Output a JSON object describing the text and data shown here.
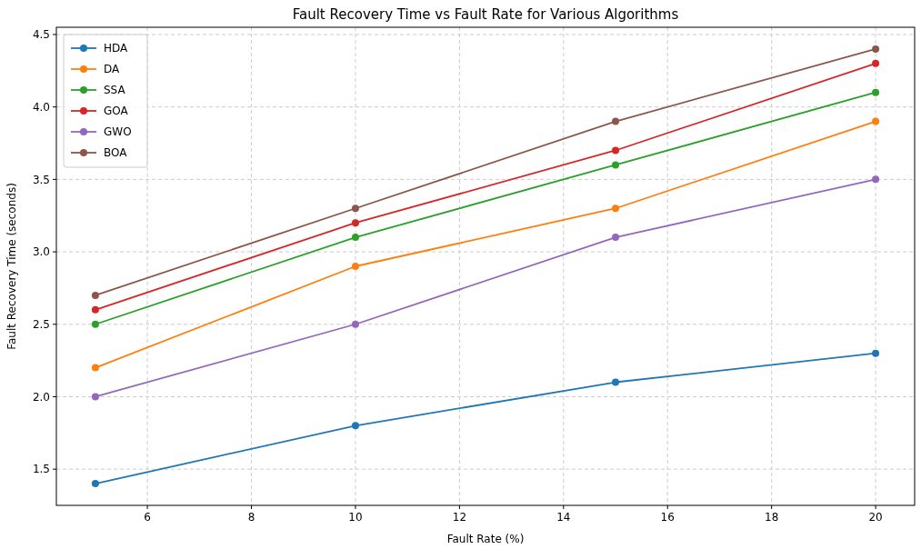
{
  "chart_data": {
    "type": "line",
    "title": "Fault Recovery Time vs Fault Rate for Various Algorithms",
    "xlabel": "Fault Rate (%)",
    "ylabel": "Fault Recovery Time (seconds)",
    "x": [
      5,
      10,
      15,
      20
    ],
    "series": [
      {
        "name": "HDA",
        "color": "#1f77b4",
        "values": [
          1.4,
          1.8,
          2.1,
          2.3
        ]
      },
      {
        "name": "DA",
        "color": "#ff7f0e",
        "values": [
          2.2,
          2.9,
          3.3,
          3.9
        ]
      },
      {
        "name": "SSA",
        "color": "#2ca02c",
        "values": [
          2.5,
          3.1,
          3.6,
          4.1
        ]
      },
      {
        "name": "GOA",
        "color": "#d62728",
        "values": [
          2.6,
          3.2,
          3.7,
          4.3
        ]
      },
      {
        "name": "GWO",
        "color": "#9467bd",
        "values": [
          2.0,
          2.5,
          3.1,
          3.5
        ]
      },
      {
        "name": "BOA",
        "color": "#8c564b",
        "values": [
          2.7,
          3.3,
          3.9,
          4.4
        ]
      }
    ],
    "xlim": [
      4.25,
      20.75
    ],
    "ylim": [
      1.25,
      4.55
    ],
    "xticks": [
      6,
      8,
      10,
      12,
      14,
      16,
      18,
      20
    ],
    "yticks": [
      1.5,
      {
        "value": 2,
        "label": "2.0"
      },
      2.5,
      {
        "value": 3,
        "label": "3.0"
      },
      3.5,
      {
        "value": 4,
        "label": "4.0"
      },
      4.5
    ],
    "grid": true,
    "legend": "top left",
    "marker": "circle",
    "line_style": "solid"
  }
}
